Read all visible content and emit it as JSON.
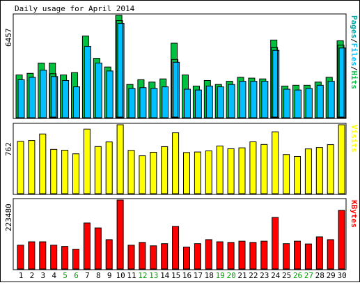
{
  "title": "Daily usage for April 2014",
  "colors": {
    "hits": "#00c040",
    "files": "#00c0ff",
    "pages": "#00a0a0",
    "visits": "#ffff00",
    "kbytes": "#ff0000",
    "weekend": "#00a000",
    "weekday": "#000000"
  },
  "chart_data": [
    {
      "type": "bar",
      "ylabel": "6457",
      "ymax": 6457,
      "legend": [
        {
          "label": "Pages",
          "color": "#00a0a0"
        },
        {
          "label": "/",
          "color": "#000000"
        },
        {
          "label": "Files",
          "color": "#00c0ff"
        },
        {
          "label": "/",
          "color": "#000000"
        },
        {
          "label": "Hits",
          "color": "#00c040"
        }
      ],
      "categories": [
        "1",
        "2",
        "3",
        "4",
        "5",
        "6",
        "7",
        "8",
        "9",
        "10",
        "11",
        "12",
        "13",
        "14",
        "15",
        "16",
        "17",
        "18",
        "19",
        "20",
        "21",
        "22",
        "23",
        "24",
        "25",
        "26",
        "27",
        "28",
        "29",
        "30"
      ],
      "series": [
        {
          "name": "Hits",
          "color": "#00c040",
          "values": [
            2700,
            2800,
            3450,
            3450,
            2700,
            2850,
            5150,
            3750,
            3200,
            6457,
            2100,
            2400,
            2250,
            2450,
            4700,
            2700,
            2000,
            2350,
            2100,
            2300,
            2550,
            2500,
            2450,
            4900,
            2000,
            2050,
            2050,
            2250,
            2550,
            4850
          ]
        },
        {
          "name": "Files",
          "color": "#00c0ff",
          "values": [
            2400,
            2550,
            3000,
            2600,
            2350,
            1950,
            4500,
            3450,
            2950,
            5950,
            1850,
            1900,
            1850,
            1950,
            3500,
            1800,
            1750,
            2000,
            1950,
            2100,
            2300,
            2300,
            2300,
            4250,
            1800,
            1750,
            1850,
            2050,
            2300,
            4400
          ]
        }
      ]
    },
    {
      "type": "bar",
      "ylabel": "762",
      "ymax": 762,
      "legend": [
        {
          "label": "Visits",
          "color": "#ffff00"
        }
      ],
      "categories": [
        "1",
        "2",
        "3",
        "4",
        "5",
        "6",
        "7",
        "8",
        "9",
        "10",
        "11",
        "12",
        "13",
        "14",
        "15",
        "16",
        "17",
        "18",
        "19",
        "20",
        "21",
        "22",
        "23",
        "24",
        "25",
        "26",
        "27",
        "28",
        "29",
        "30"
      ],
      "series": [
        {
          "name": "Visits",
          "color": "#ffff00",
          "values": [
            578,
            588,
            660,
            490,
            481,
            441,
            714,
            521,
            572,
            762,
            478,
            419,
            458,
            520,
            673,
            455,
            461,
            473,
            527,
            497,
            507,
            573,
            544,
            684,
            433,
            412,
            495,
            511,
            542,
            762
          ]
        }
      ]
    },
    {
      "type": "bar",
      "ylabel": "223480",
      "ymax": 223480,
      "legend": [
        {
          "label": "KBytes",
          "color": "#ff0000"
        }
      ],
      "categories": [
        "1",
        "2",
        "3",
        "4",
        "5",
        "6",
        "7",
        "8",
        "9",
        "10",
        "11",
        "12",
        "13",
        "14",
        "15",
        "16",
        "17",
        "18",
        "19",
        "20",
        "21",
        "22",
        "23",
        "24",
        "25",
        "26",
        "27",
        "28",
        "29",
        "30"
      ],
      "series": [
        {
          "name": "KBytes",
          "color": "#ff0000",
          "values": [
            77000,
            88000,
            88000,
            77000,
            73000,
            64000,
            149000,
            133000,
            95000,
            223480,
            77000,
            86000,
            75000,
            82000,
            138000,
            71000,
            82000,
            95000,
            88000,
            86000,
            90000,
            86000,
            90000,
            167000,
            82000,
            90000,
            81000,
            104000,
            95000,
            190000
          ]
        }
      ]
    }
  ],
  "x_day_labels": [
    "1",
    "2",
    "3",
    "4",
    "5",
    "6",
    "7",
    "8",
    "9",
    "10",
    "11",
    "12",
    "13",
    "14",
    "15",
    "16",
    "17",
    "18",
    "19",
    "20",
    "21",
    "22",
    "23",
    "24",
    "25",
    "26",
    "27",
    "28",
    "29",
    "30"
  ],
  "weekend_days": [
    5,
    6,
    12,
    13,
    19,
    20,
    26,
    27
  ]
}
